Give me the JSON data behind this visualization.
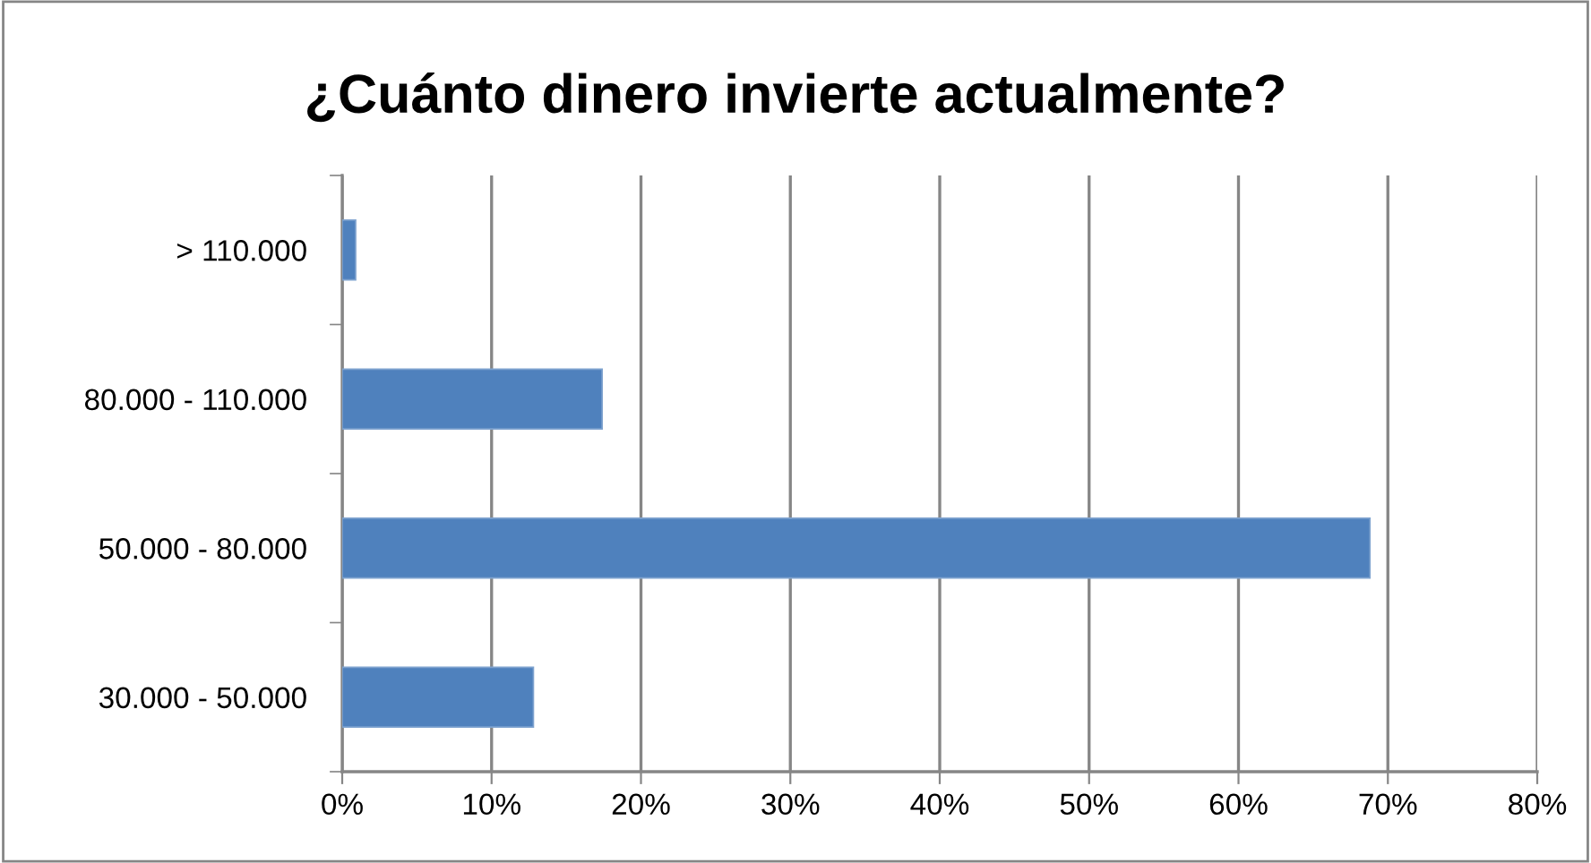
{
  "chart_data": {
    "type": "bar",
    "orientation": "horizontal",
    "title": "¿Cuánto dinero invierte actualmente?",
    "categories": [
      "> 110.000",
      "80.000 - 110.000",
      "50.000 - 80.000",
      "30.000 - 50.000"
    ],
    "values": [
      0.9,
      17.4,
      68.8,
      12.8
    ],
    "color": "#4f81bd",
    "xlim": [
      0,
      80
    ],
    "xticks": [
      {
        "value": 0,
        "label": "0%"
      },
      {
        "value": 10,
        "label": "10%"
      },
      {
        "value": 20,
        "label": "20%"
      },
      {
        "value": 30,
        "label": "30%"
      },
      {
        "value": 40,
        "label": "40%"
      },
      {
        "value": 50,
        "label": "50%"
      },
      {
        "value": 60,
        "label": "60%"
      },
      {
        "value": 70,
        "label": "70%"
      },
      {
        "value": 80,
        "label": "80%"
      }
    ],
    "grid": "x",
    "legend": false
  }
}
